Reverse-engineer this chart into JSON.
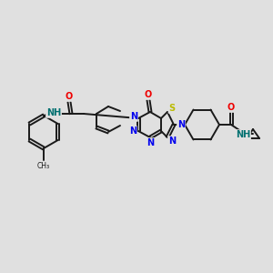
{
  "bg_color": "#e0e0e0",
  "bond_color": "#1a1a1a",
  "N_color": "#0000ee",
  "O_color": "#ee0000",
  "S_color": "#bbbb00",
  "NH_color": "#007070",
  "lw": 1.4,
  "fs": 7.0,
  "fig_w": 3.0,
  "fig_h": 3.0,
  "dpi": 100,
  "xlim": [
    0,
    300
  ],
  "ylim": [
    0,
    300
  ]
}
